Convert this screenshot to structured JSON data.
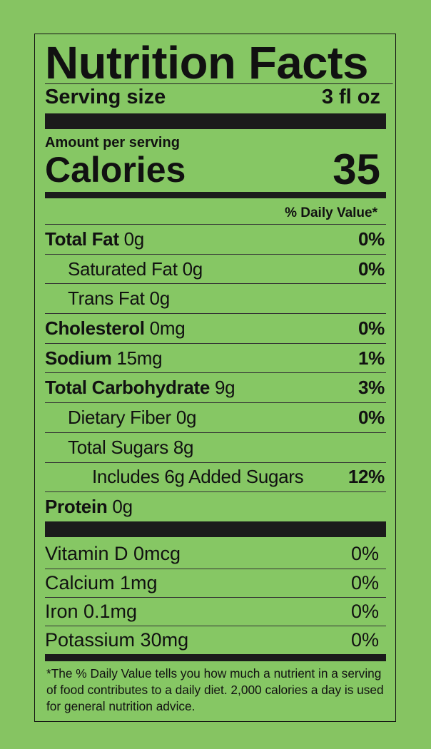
{
  "title": "Nutrition Facts",
  "serving": {
    "label": "Serving size",
    "value": "3 fl oz"
  },
  "amount_per_serving": "Amount per serving",
  "calories": {
    "label": "Calories",
    "value": "35"
  },
  "daily_value_header": "% Daily Value*",
  "nutrients": [
    {
      "name": "Total Fat",
      "amount": "0g",
      "dv": "0%",
      "bold": true,
      "indent": 0
    },
    {
      "name": "Saturated Fat",
      "amount": "0g",
      "dv": "0%",
      "bold": false,
      "indent": 1
    },
    {
      "name": "Trans Fat",
      "amount": "0g",
      "dv": "",
      "bold": false,
      "indent": 1
    },
    {
      "name": "Cholesterol",
      "amount": "0mg",
      "dv": "0%",
      "bold": true,
      "indent": 0
    },
    {
      "name": "Sodium",
      "amount": "15mg",
      "dv": "1%",
      "bold": true,
      "indent": 0
    },
    {
      "name": "Total Carbohydrate",
      "amount": "9g",
      "dv": "3%",
      "bold": true,
      "indent": 0
    },
    {
      "name": "Dietary Fiber",
      "amount": "0g",
      "dv": "0%",
      "bold": false,
      "indent": 1
    },
    {
      "name": "Total Sugars",
      "amount": "8g",
      "dv": "",
      "bold": false,
      "indent": 1
    },
    {
      "name": "Includes 6g Added Sugars",
      "amount": "",
      "dv": "12%",
      "bold": false,
      "indent": 2
    },
    {
      "name": "Protein",
      "amount": "0g",
      "dv": "",
      "bold": true,
      "indent": 0
    }
  ],
  "vitamins": [
    {
      "name": "Vitamin D 0mcg",
      "dv": "0%"
    },
    {
      "name": "Calcium 1mg",
      "dv": "0%"
    },
    {
      "name": "Iron 0.1mg",
      "dv": "0%"
    },
    {
      "name": "Potassium 30mg",
      "dv": "0%"
    }
  ],
  "footnote": "*The % Daily Value tells you how much a nutrient in a serving of food contributes to a daily diet. 2,000 calories a day is used for general nutrition advice.",
  "colors": {
    "background": "#86c462",
    "ink": "#111111"
  }
}
